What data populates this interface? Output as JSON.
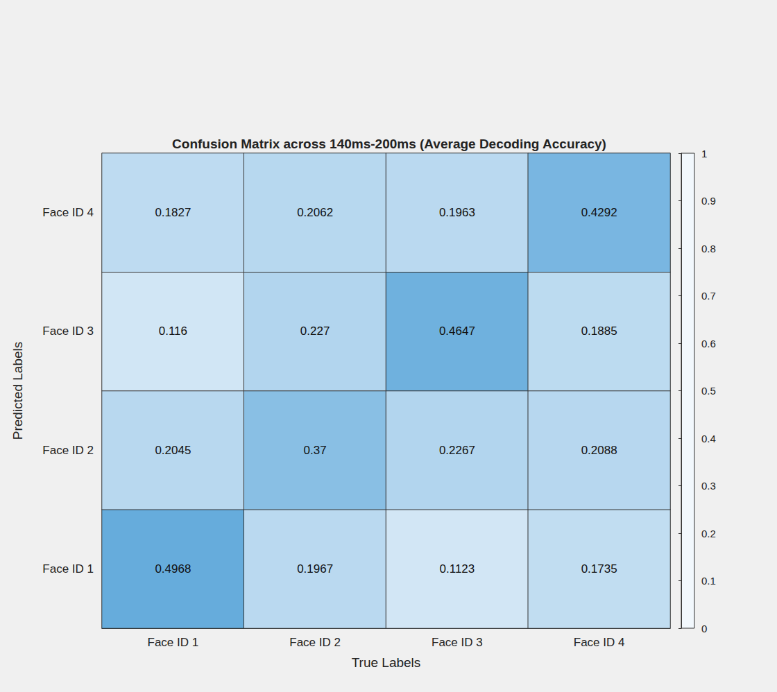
{
  "chart_data": {
    "type": "heatmap",
    "title": "Confusion Matrix across 140ms-200ms (Average Decoding Accuracy)",
    "xlabel": "True Labels",
    "ylabel": "Predicted Labels",
    "x_categories": [
      "Face ID 1",
      "Face ID 2",
      "Face ID 3",
      "Face ID 4"
    ],
    "y_categories": [
      "Face ID 1",
      "Face ID 2",
      "Face ID 3",
      "Face ID 4"
    ],
    "cells": [
      [
        0.4968,
        0.1967,
        0.1123,
        0.1735
      ],
      [
        0.2045,
        0.37,
        0.2267,
        0.2088
      ],
      [
        0.116,
        0.227,
        0.4647,
        0.1885
      ],
      [
        0.1827,
        0.2062,
        0.1963,
        0.4292
      ]
    ],
    "colorbar": {
      "range": [
        0,
        1
      ],
      "ticks": [
        0,
        0.1,
        0.2,
        0.3,
        0.4,
        0.5,
        0.6,
        0.7,
        0.8,
        0.9,
        1
      ]
    },
    "data_labels": true
  }
}
